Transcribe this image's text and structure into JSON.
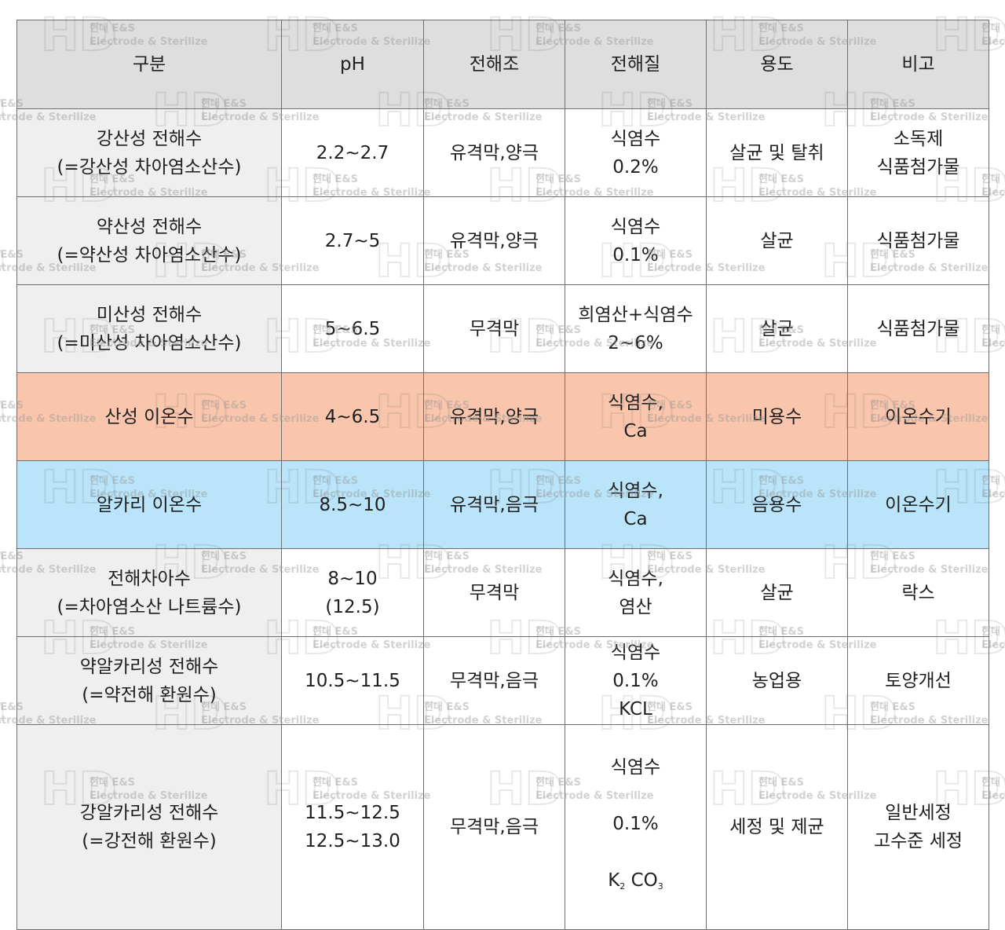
{
  "table": {
    "headers": [
      "구분",
      "pH",
      "전해조",
      "전해질",
      "용도",
      "비고"
    ],
    "rows": [
      {
        "type": "강산성 전해수\n(=강산성 차아염소산수)",
        "ph": "2.2~2.7",
        "cell": "유격막,양극",
        "electrolyte": "식염수\n0.2%",
        "use": "살균 및 탈취",
        "note": "소독제\n식품첨가물"
      },
      {
        "type": "약산성 전해수\n(=약산성 차아염소산수)",
        "ph": "2.7~5",
        "cell": "유격막,양극",
        "electrolyte": "식염수\n0.1%",
        "use": "살균",
        "note": "식품첨가물"
      },
      {
        "type": "미산성 전해수\n(=미산성 차아염소산수)",
        "ph": "5~6.5",
        "cell": "무격막",
        "electrolyte": "희염산+식염수\n2~6%",
        "use": "살균",
        "note": "식품첨가물"
      },
      {
        "type": "산성 이온수",
        "ph": "4~6.5",
        "cell": "유격막,양극",
        "electrolyte": "식염수,\nCa",
        "use": "미용수",
        "note": "이온수기"
      },
      {
        "type": "알카리 이온수",
        "ph": "8.5~10",
        "cell": "유격막,음극",
        "electrolyte": "식염수,\nCa",
        "use": "음용수",
        "note": "이온수기"
      },
      {
        "type": "전해차아수\n(=차아염소산 나트륨수)",
        "ph": "8~10\n(12.5)",
        "cell": "무격막",
        "electrolyte": "식염수,\n염산",
        "use": "살균",
        "note": "락스"
      },
      {
        "type": "약알카리성 전해수\n(=약전해 환원수)",
        "ph": "10.5~11.5",
        "cell": "무격막,음극",
        "electrolyte": "식염수\n0.1%\nKCL",
        "use": "농업용",
        "note": "토양개선"
      },
      {
        "type": "강알카리성 전해수\n(=강전해 환원수)",
        "ph": "11.5~12.5\n12.5~13.0",
        "cell": "무격막,음극",
        "electrolyte_lines": [
          "식염수",
          "0.1%"
        ],
        "electrolyte_formula": {
          "k": "K",
          "k_sub": "2",
          "co": "CO",
          "co_sub": "3"
        },
        "use": "세정 및 제균",
        "note": "일반세정\n고수준 세정"
      }
    ]
  },
  "watermark": {
    "line1": "현대 E&S",
    "line2": "Electrode & Sterilize",
    "logo_letters": "HD"
  },
  "colors": {
    "header_bg": "#dedede",
    "first_col_bg": "#efefef",
    "acid_ion_row_bg": "#f9c6ad",
    "alkali_ion_row_bg": "#b9e4f9",
    "border": "#6f6f6f"
  }
}
